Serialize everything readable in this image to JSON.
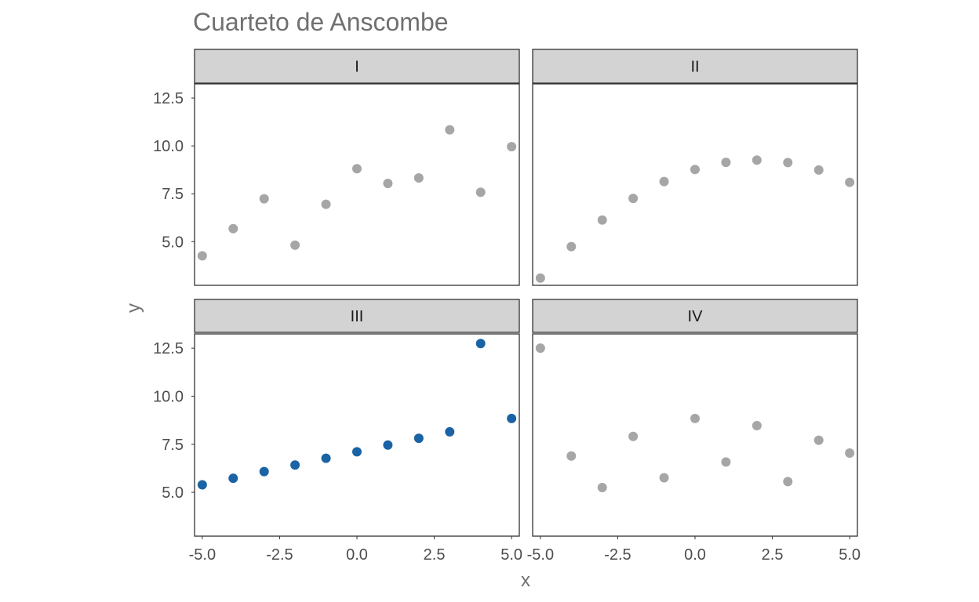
{
  "chart_data": {
    "type": "scatter",
    "title": "Cuarteto de Anscombe",
    "xlabel": "x",
    "ylabel": "y",
    "xlim": [
      -5.25,
      5.25
    ],
    "ylim": [
      2.72,
      13.24
    ],
    "x_ticks": [
      "-5.0",
      "-2.5",
      "0.0",
      "2.5",
      "5.0"
    ],
    "x_tick_values": [
      -5,
      -2.5,
      0,
      2.5,
      5
    ],
    "y_ticks": [
      "5.0",
      "7.5",
      "10.0",
      "12.5"
    ],
    "y_tick_values": [
      5,
      7.5,
      10,
      12.5
    ],
    "grid": false,
    "layout": "2x2 facets",
    "colors": {
      "default_point": "#a6a6a6",
      "highlight_point": "#1a63a5",
      "strip_bg": "#d3d3d3",
      "panel_border": "#333333"
    },
    "facets": [
      {
        "label": "I",
        "highlight": false,
        "x": [
          -5,
          -4,
          -3,
          -2,
          -1,
          0,
          1,
          2,
          3,
          4,
          5
        ],
        "y": [
          4.26,
          5.68,
          7.24,
          4.82,
          6.95,
          8.81,
          8.04,
          8.33,
          10.84,
          7.58,
          9.96
        ]
      },
      {
        "label": "II",
        "highlight": false,
        "x": [
          -5,
          -4,
          -3,
          -2,
          -1,
          0,
          1,
          2,
          3,
          4,
          5
        ],
        "y": [
          3.1,
          4.74,
          6.13,
          7.26,
          8.14,
          8.77,
          9.14,
          9.26,
          9.13,
          8.74,
          8.1
        ]
      },
      {
        "label": "III",
        "highlight": true,
        "x": [
          -5,
          -4,
          -3,
          -2,
          -1,
          0,
          1,
          2,
          3,
          4,
          5
        ],
        "y": [
          5.39,
          5.73,
          6.08,
          6.42,
          6.77,
          7.11,
          7.46,
          7.81,
          8.15,
          12.74,
          8.84
        ]
      },
      {
        "label": "IV",
        "highlight": false,
        "x": [
          -5,
          -4,
          -3,
          -2,
          -1,
          0,
          1,
          2,
          3,
          4,
          5
        ],
        "y": [
          12.5,
          6.89,
          5.25,
          7.91,
          5.76,
          8.84,
          6.58,
          8.47,
          5.56,
          7.71,
          7.04
        ]
      }
    ]
  }
}
